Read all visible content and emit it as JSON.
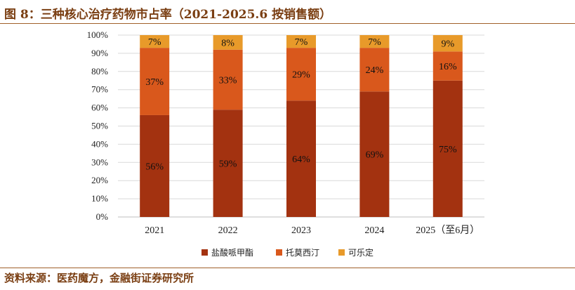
{
  "title": "图 8：三种核心治疗药物市占率（2021-2025.6 按销售额）",
  "source": "资料来源：医药魔方，金融街证券研究所",
  "chart_data": {
    "type": "bar",
    "stacked": true,
    "categories": [
      "2021",
      "2022",
      "2023",
      "2024",
      "2025（至6月）"
    ],
    "series": [
      {
        "name": "盐酸哌甲酯",
        "color": "#a33210",
        "values": [
          56,
          59,
          64,
          69,
          75
        ],
        "labels": [
          "56%",
          "59%",
          "64%",
          "69%",
          "75%"
        ]
      },
      {
        "name": "托莫西汀",
        "color": "#d9581c",
        "values": [
          37,
          33,
          29,
          24,
          16
        ],
        "labels": [
          "37%",
          "33%",
          "29%",
          "24%",
          "16%"
        ]
      },
      {
        "name": "可乐定",
        "color": "#e89a2a",
        "values": [
          7,
          8,
          7,
          7,
          9
        ],
        "labels": [
          "7%",
          "8%",
          "7%",
          "7%",
          "9%"
        ]
      }
    ],
    "ylim": [
      0,
      100
    ],
    "yticks": [
      "0%",
      "10%",
      "20%",
      "30%",
      "40%",
      "50%",
      "60%",
      "70%",
      "80%",
      "90%",
      "100%"
    ],
    "grid": true,
    "legend_position": "bottom"
  }
}
